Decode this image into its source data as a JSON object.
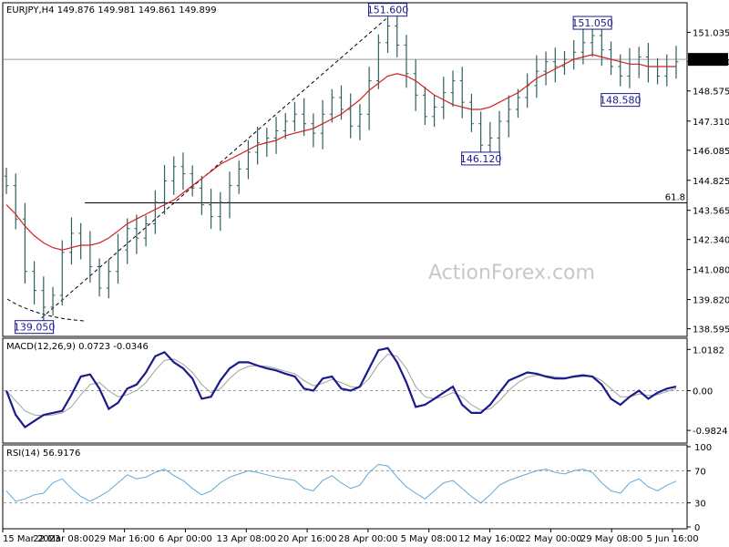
{
  "chart_data": {
    "type": "candlestick",
    "symbol": "EURJPY",
    "timeframe": "H4",
    "ohlc": [
      "149.876",
      "149.981",
      "149.861",
      "149.899"
    ],
    "last_price_label": "149.899",
    "price_axis": [
      "151.035",
      "149.810",
      "148.575",
      "147.310",
      "146.085",
      "144.825",
      "143.565",
      "142.340",
      "141.080",
      "139.820",
      "138.595"
    ],
    "ylim": [
      138.35,
      152.2
    ],
    "x_labels": [
      "15 Mar 2023",
      "22 Mar 08:00",
      "29 Mar 16:00",
      "6 Apr 00:00",
      "13 Apr 08:00",
      "20 Apr 16:00",
      "28 Apr 00:00",
      "5 May 08:00",
      "12 May 16:00",
      "22 May 00:00",
      "29 May 08:00",
      "5 Jun 16:00"
    ],
    "closes": [
      144.6,
      143.2,
      141.0,
      140.2,
      139.5,
      140.0,
      141.8,
      142.6,
      142.1,
      141.2,
      140.3,
      141.0,
      141.9,
      142.8,
      142.4,
      143.0,
      143.9,
      144.8,
      145.4,
      145.1,
      144.5,
      143.8,
      143.3,
      143.9,
      144.6,
      145.3,
      146.0,
      146.4,
      146.6,
      146.9,
      147.3,
      147.6,
      147.2,
      146.8,
      147.6,
      148.3,
      147.8,
      147.1,
      147.6,
      149.0,
      150.6,
      151.3,
      150.5,
      149.3,
      148.4,
      147.5,
      147.9,
      148.5,
      149.0,
      148.1,
      147.2,
      146.3,
      146.6,
      147.3,
      147.8,
      148.3,
      148.8,
      149.4,
      149.8,
      149.6,
      149.9,
      150.2,
      150.6,
      150.9,
      150.3,
      149.6,
      149.2,
      149.7,
      150.0,
      149.6,
      149.2,
      149.6,
      149.8
    ],
    "ma": [
      143.8,
      143.4,
      142.9,
      142.5,
      142.2,
      142.0,
      141.9,
      142.0,
      142.1,
      142.1,
      142.2,
      142.4,
      142.7,
      143.0,
      143.2,
      143.4,
      143.6,
      143.8,
      144.0,
      144.3,
      144.6,
      144.9,
      145.2,
      145.5,
      145.7,
      145.9,
      146.1,
      146.3,
      146.4,
      146.5,
      146.7,
      146.8,
      146.9,
      147.0,
      147.2,
      147.4,
      147.6,
      147.9,
      148.2,
      148.6,
      148.9,
      149.2,
      149.3,
      149.2,
      149.0,
      148.7,
      148.4,
      148.2,
      148.0,
      147.9,
      147.8,
      147.8,
      147.9,
      148.1,
      148.3,
      148.5,
      148.8,
      149.1,
      149.3,
      149.5,
      149.7,
      149.9,
      150.0,
      150.1,
      150.0,
      149.9,
      149.8,
      149.7,
      149.7,
      149.6,
      149.6,
      149.6,
      149.6
    ],
    "callouts": [
      {
        "text": "139.050",
        "price": 139.05,
        "idx": 3,
        "place": "below"
      },
      {
        "text": "151.600",
        "price": 151.6,
        "idx": 41,
        "place": "above"
      },
      {
        "text": "146.120",
        "price": 146.12,
        "idx": 51,
        "place": "below"
      },
      {
        "text": "151.050",
        "price": 151.05,
        "idx": 63,
        "place": "above"
      },
      {
        "text": "148.580",
        "price": 148.58,
        "idx": 66,
        "place": "below"
      }
    ],
    "fib_level": {
      "label": "61.8",
      "price": 143.88
    },
    "macd": {
      "label": "MACD(12,26,9) 0.0723 -0.0346",
      "axis": [
        "1.0182",
        "0.00",
        "-0.9824"
      ],
      "ylim": [
        -1.25,
        1.25
      ],
      "values": [
        0.0,
        -0.6,
        -0.9,
        -0.75,
        -0.6,
        -0.55,
        -0.5,
        -0.1,
        0.35,
        0.4,
        0.05,
        -0.45,
        -0.3,
        0.05,
        0.15,
        0.45,
        0.85,
        0.95,
        0.7,
        0.55,
        0.3,
        -0.2,
        -0.15,
        0.25,
        0.55,
        0.7,
        0.7,
        0.62,
        0.55,
        0.5,
        0.42,
        0.35,
        0.05,
        0.0,
        0.3,
        0.35,
        0.05,
        0.0,
        0.1,
        0.55,
        1.0,
        1.05,
        0.7,
        0.2,
        -0.4,
        -0.35,
        -0.2,
        -0.05,
        0.1,
        -0.35,
        -0.55,
        -0.55,
        -0.35,
        -0.05,
        0.25,
        0.35,
        0.45,
        0.42,
        0.35,
        0.3,
        0.3,
        0.35,
        0.38,
        0.35,
        0.15,
        -0.2,
        -0.35,
        -0.15,
        0.0,
        -0.2,
        -0.05,
        0.05,
        0.1
      ],
      "signal": [
        0.0,
        -0.25,
        -0.5,
        -0.6,
        -0.62,
        -0.6,
        -0.55,
        -0.4,
        -0.1,
        0.15,
        0.2,
        0.0,
        -0.15,
        -0.1,
        0.0,
        0.2,
        0.5,
        0.75,
        0.78,
        0.65,
        0.45,
        0.15,
        -0.05,
        0.05,
        0.3,
        0.5,
        0.6,
        0.62,
        0.6,
        0.55,
        0.48,
        0.42,
        0.25,
        0.12,
        0.18,
        0.28,
        0.2,
        0.1,
        0.08,
        0.3,
        0.65,
        0.9,
        0.85,
        0.55,
        0.1,
        -0.15,
        -0.2,
        -0.15,
        -0.05,
        -0.15,
        -0.35,
        -0.48,
        -0.45,
        -0.25,
        0.0,
        0.2,
        0.33,
        0.38,
        0.37,
        0.34,
        0.32,
        0.33,
        0.35,
        0.36,
        0.25,
        0.05,
        -0.15,
        -0.15,
        -0.08,
        -0.12,
        -0.1,
        -0.02,
        0.05
      ]
    },
    "rsi": {
      "label": "RSI(14) 56.9176",
      "axis": [
        "100",
        "70",
        "30",
        "0"
      ],
      "ylim": [
        0,
        100
      ],
      "levels": [
        70,
        30
      ],
      "values": [
        45,
        32,
        35,
        40,
        42,
        55,
        60,
        48,
        38,
        32,
        38,
        45,
        55,
        65,
        60,
        62,
        68,
        72,
        64,
        58,
        48,
        40,
        45,
        55,
        62,
        66,
        70,
        68,
        65,
        62,
        60,
        58,
        48,
        45,
        58,
        64,
        55,
        48,
        52,
        68,
        78,
        76,
        62,
        50,
        42,
        35,
        45,
        55,
        58,
        48,
        38,
        30,
        40,
        52,
        58,
        62,
        66,
        70,
        72,
        68,
        66,
        70,
        72,
        68,
        55,
        45,
        42,
        55,
        60,
        50,
        45,
        52,
        57
      ]
    }
  },
  "watermark": "ActionForex.com",
  "colors": {
    "bar": "#2f5f5f",
    "ma": "#d22020",
    "macd": "#1a1a8c",
    "signal": "#a0a0a0",
    "rsi": "#5fa8d8",
    "grid": "#9a9a9a",
    "text": "#000000",
    "callout_text": "#1a1a8c"
  }
}
